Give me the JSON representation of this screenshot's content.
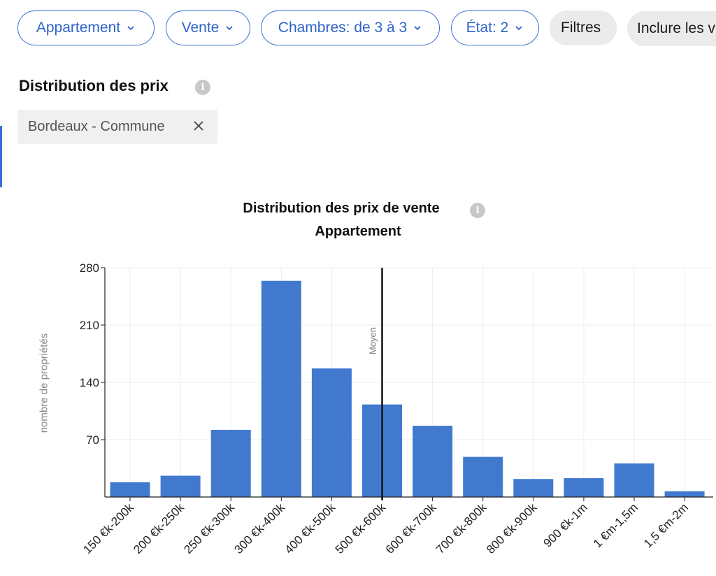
{
  "filters": [
    {
      "label": "Appartement"
    },
    {
      "label": "Vente"
    },
    {
      "label": "Chambres: de 3 à 3"
    },
    {
      "label": "État: 2"
    }
  ],
  "filters_button": "Filtres",
  "include_button": "Inclure les v",
  "section": {
    "title": "Distribution des prix"
  },
  "location_chip": {
    "label": "Bordeaux - Commune"
  },
  "colors": {
    "accent": "#3b6fd6",
    "bar": "#4179cf"
  },
  "icons": [
    "chevron-down-icon",
    "info-icon",
    "close-icon"
  ],
  "chart_data": {
    "type": "bar",
    "title": "Distribution des prix de vente",
    "subtitle": "Appartement",
    "ylabel": "nombre de propriétés",
    "xlabel": "",
    "ylim": [
      0,
      280
    ],
    "yticks": [
      70,
      140,
      210,
      280
    ],
    "categories": [
      "150 €k-200k",
      "200 €k-250k",
      "250 €k-300k",
      "300 €k-400k",
      "400 €k-500k",
      "500 €k-600k",
      "600 €k-700k",
      "700 €k-800k",
      "800 €k-900k",
      "900 €k-1m",
      "1 €m-1,5m",
      "1,5 €m-2m"
    ],
    "values": [
      18,
      26,
      82,
      264,
      157,
      113,
      87,
      49,
      22,
      23,
      41,
      7
    ],
    "mean_marker": {
      "label": "Moyen",
      "category_index": 5
    },
    "grid": true
  }
}
